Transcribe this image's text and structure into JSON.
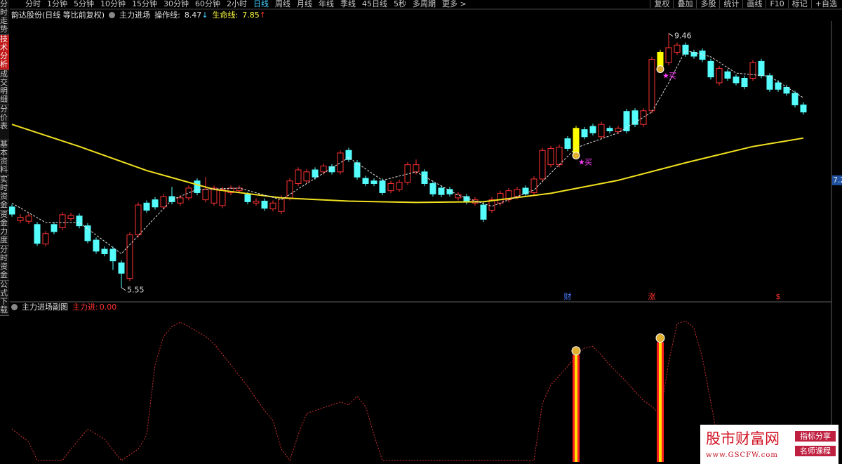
{
  "toolbar": {
    "periods": [
      "分时",
      "1分钟",
      "5分钟",
      "10分钟",
      "15分钟",
      "30分钟",
      "60分钟",
      "2小时",
      "日线",
      "周线",
      "月线",
      "年线",
      "季线",
      "45日线",
      "5秒",
      "多周期",
      "更多 >"
    ],
    "active_index": 8,
    "tools": [
      "复权",
      "叠加",
      "多股",
      "统计",
      "画线",
      "F10",
      "标记",
      "+自选"
    ]
  },
  "sidebar": {
    "tabs": [
      "分时走势",
      "技术分析",
      "成交明细",
      "分价表",
      "基本资料",
      "实时资金",
      "资金力度",
      "分时资金",
      "公式下载"
    ],
    "active_index": 1
  },
  "info": {
    "stock": "韵达股份(日线 等比前复权)",
    "indicator": "主力进场",
    "op_label": "操作线:",
    "op_value": 8.47,
    "op_arrow": "↓",
    "life_label": "生命线:",
    "life_value": 7.85,
    "life_arrow": "↑"
  },
  "price_chart": {
    "type": "candlestick",
    "open": [
      6.79,
      6.58,
      6.57,
      6.52,
      6.22,
      6.52,
      6.47,
      6.61,
      6.65,
      6.5,
      6.28,
      6.14,
      6.14,
      5.93,
      5.69,
      6.36,
      6.85,
      6.9,
      6.79,
      6.95,
      6.85,
      6.93,
      7.19,
      6.9,
      6.85,
      6.81,
      7.01,
      7.04,
      6.98,
      6.85,
      6.88,
      6.76,
      6.72,
      6.93,
      7.15,
      7.19,
      7.36,
      7.33,
      7.41,
      7.33,
      7.66,
      7.47,
      7.23,
      7.19,
      7.19,
      7.04,
      7.06,
      7.17,
      7.33,
      7.33,
      7.15,
      7.08,
      7.06,
      6.93,
      6.95,
      6.85,
      6.82,
      6.74,
      6.85,
      6.9,
      6.95,
      7.08,
      7.01,
      7.22,
      7.44,
      7.44,
      7.84,
      7.62,
      7.98,
      8.03,
      7.87,
      8.0,
      7.95,
      8.26,
      8.27,
      8.06,
      8.27,
      8.95,
      9.01,
      9.17,
      9.28,
      9.17,
      9.19,
      9.03,
      8.7,
      8.87,
      8.79,
      8.77,
      8.77,
      9.03,
      8.81,
      8.7,
      8.63,
      8.54,
      8.36
    ],
    "close": [
      6.68,
      6.63,
      6.65,
      6.23,
      6.38,
      6.41,
      6.67,
      6.66,
      6.5,
      6.27,
      6.11,
      6.07,
      5.96,
      5.77,
      6.36,
      6.82,
      6.74,
      6.79,
      6.95,
      6.87,
      6.93,
      7.08,
      7.01,
      7.06,
      7.08,
      7.06,
      7.08,
      7.08,
      6.87,
      6.88,
      6.77,
      6.85,
      6.93,
      7.19,
      7.36,
      7.33,
      7.25,
      7.42,
      7.33,
      7.62,
      7.52,
      7.25,
      7.15,
      7.15,
      7.01,
      7.15,
      7.17,
      7.44,
      7.44,
      7.15,
      6.99,
      6.98,
      6.99,
      6.98,
      6.87,
      6.9,
      6.6,
      6.9,
      7.0,
      7.04,
      7.06,
      6.99,
      7.22,
      7.66,
      7.69,
      7.71,
      7.69,
      8.0,
      7.87,
      7.93,
      8.06,
      7.96,
      8.0,
      7.96,
      8.06,
      8.27,
      9.06,
      9.17,
      9.24,
      9.28,
      9.14,
      9.11,
      9.06,
      8.79,
      8.92,
      8.77,
      8.7,
      8.64,
      9.01,
      8.81,
      8.6,
      8.6,
      8.54,
      8.36,
      8.25
    ],
    "high": [
      6.83,
      6.68,
      6.69,
      6.56,
      6.42,
      6.56,
      6.71,
      6.7,
      6.69,
      6.54,
      6.32,
      6.18,
      6.18,
      5.97,
      6.4,
      6.86,
      6.89,
      6.94,
      6.99,
      7.1,
      6.97,
      7.12,
      7.23,
      7.25,
      7.12,
      7.1,
      7.12,
      7.12,
      7.02,
      6.92,
      6.92,
      6.89,
      6.97,
      7.23,
      7.4,
      7.37,
      7.4,
      7.46,
      7.45,
      7.66,
      7.7,
      7.51,
      7.27,
      7.23,
      7.23,
      7.19,
      7.21,
      7.48,
      7.52,
      7.37,
      7.19,
      7.12,
      7.1,
      7.02,
      6.99,
      6.94,
      6.86,
      6.94,
      7.04,
      7.08,
      7.1,
      7.12,
      7.26,
      7.7,
      7.73,
      7.75,
      7.88,
      8.04,
      8.02,
      8.07,
      8.1,
      8.04,
      8.04,
      8.3,
      8.31,
      8.31,
      9.1,
      9.21,
      9.46,
      9.32,
      9.32,
      9.21,
      9.23,
      9.07,
      8.96,
      8.91,
      8.83,
      8.81,
      9.05,
      9.07,
      8.85,
      8.74,
      8.67,
      8.58,
      8.4
    ],
    "low": [
      6.64,
      6.54,
      6.53,
      6.19,
      6.18,
      6.37,
      6.43,
      6.57,
      6.46,
      6.23,
      6.07,
      6.03,
      5.82,
      5.55,
      5.65,
      6.32,
      6.7,
      6.75,
      6.75,
      6.83,
      6.81,
      6.89,
      6.97,
      6.86,
      6.81,
      6.77,
      6.97,
      7.0,
      6.83,
      6.81,
      6.73,
      6.72,
      6.68,
      6.89,
      7.11,
      7.15,
      7.21,
      7.29,
      7.29,
      7.29,
      7.48,
      7.21,
      7.11,
      7.11,
      6.97,
      7.0,
      7.02,
      7.13,
      7.29,
      7.11,
      6.95,
      6.94,
      6.95,
      6.89,
      6.83,
      6.81,
      6.56,
      6.7,
      6.81,
      6.86,
      6.91,
      6.95,
      6.97,
      7.18,
      7.4,
      7.4,
      7.65,
      7.58,
      7.83,
      7.89,
      7.83,
      7.92,
      7.91,
      7.92,
      8.02,
      8.02,
      8.23,
      8.91,
      8.97,
      9.13,
      9.1,
      9.07,
      9.02,
      8.75,
      8.66,
      8.73,
      8.66,
      8.6,
      8.73,
      8.77,
      8.56,
      8.56,
      8.5,
      8.32,
      8.21
    ],
    "up_color": "#ff3232",
    "down_color": "#54fcfc",
    "highlight_color": "#ffff00",
    "highlight_index": [
      67,
      77
    ],
    "ylim": [
      5.33,
      9.65
    ],
    "yticks": [
      7.2
    ],
    "life_line": {
      "color": "#f0e020",
      "index": [
        0,
        8,
        16,
        24,
        32,
        40,
        48,
        56,
        64,
        72,
        80,
        88,
        94
      ],
      "values": [
        8.06,
        7.72,
        7.35,
        7.06,
        6.93,
        6.88,
        6.86,
        6.87,
        7.0,
        7.2,
        7.47,
        7.72,
        7.85
      ]
    },
    "op_line": {
      "color": "#e0e0e0",
      "index": [
        0,
        4,
        8,
        13,
        15,
        19,
        22,
        27,
        32,
        35,
        40,
        44,
        48,
        53,
        57,
        62,
        67,
        72,
        76,
        78,
        80,
        83,
        86,
        90,
        94
      ],
      "values": [
        6.85,
        6.55,
        6.55,
        6.07,
        6.35,
        6.9,
        7.06,
        7.08,
        6.9,
        7.15,
        7.55,
        7.2,
        7.33,
        6.97,
        6.8,
        7.05,
        7.7,
        7.93,
        8.25,
        8.7,
        9.2,
        9.1,
        8.85,
        8.8,
        8.47
      ]
    },
    "extremes": [
      {
        "index": 78,
        "value": 9.46
      },
      {
        "index": 13,
        "value": 5.55
      }
    ],
    "signals": [
      {
        "index": 67,
        "label": "买"
      },
      {
        "index": 77,
        "label": "买"
      }
    ],
    "events": [
      {
        "index": 66,
        "label": "财",
        "color": "#4a7cff"
      },
      {
        "index": 76,
        "label": "涨",
        "color": "#ff3232"
      },
      {
        "index": 91,
        "label": "$",
        "color": "#ff3232"
      }
    ]
  },
  "indicator_chart": {
    "title": "主力进场副图",
    "readout_label": "主力进:",
    "readout": {
      "value": 0,
      "label": "0.00"
    },
    "ylim": [
      0,
      100
    ],
    "line": {
      "color": "#d03030",
      "index": [
        0,
        2,
        3,
        6,
        7,
        9,
        11,
        13,
        15,
        16,
        17,
        18,
        19,
        20,
        21,
        23,
        24,
        26,
        28,
        30,
        31,
        32,
        33,
        34,
        35,
        37,
        39,
        40,
        41,
        42,
        43,
        44,
        62,
        63,
        64,
        66,
        67,
        68,
        69,
        70,
        71,
        73,
        75,
        76,
        77,
        78,
        79,
        80,
        81,
        82,
        83,
        84,
        85
      ],
      "values": [
        23,
        14,
        1,
        1,
        9,
        23,
        16,
        1,
        9,
        19,
        68,
        88,
        95,
        98,
        95,
        88,
        83,
        68,
        53,
        36,
        29,
        9,
        1,
        19,
        34,
        38,
        42,
        40,
        46,
        39,
        19,
        1,
        1,
        41,
        54,
        67,
        74,
        80,
        81,
        75,
        68,
        56,
        43,
        39,
        33,
        70,
        97,
        99,
        94,
        73,
        42,
        11,
        1
      ]
    },
    "bars": {
      "index": [
        67,
        77
      ],
      "values": [
        75,
        84
      ]
    }
  },
  "watermark": {
    "site": "股市财富网",
    "tag1": "指标分享",
    "tag2": "名师课程",
    "url": "www.GSCFW.com"
  }
}
